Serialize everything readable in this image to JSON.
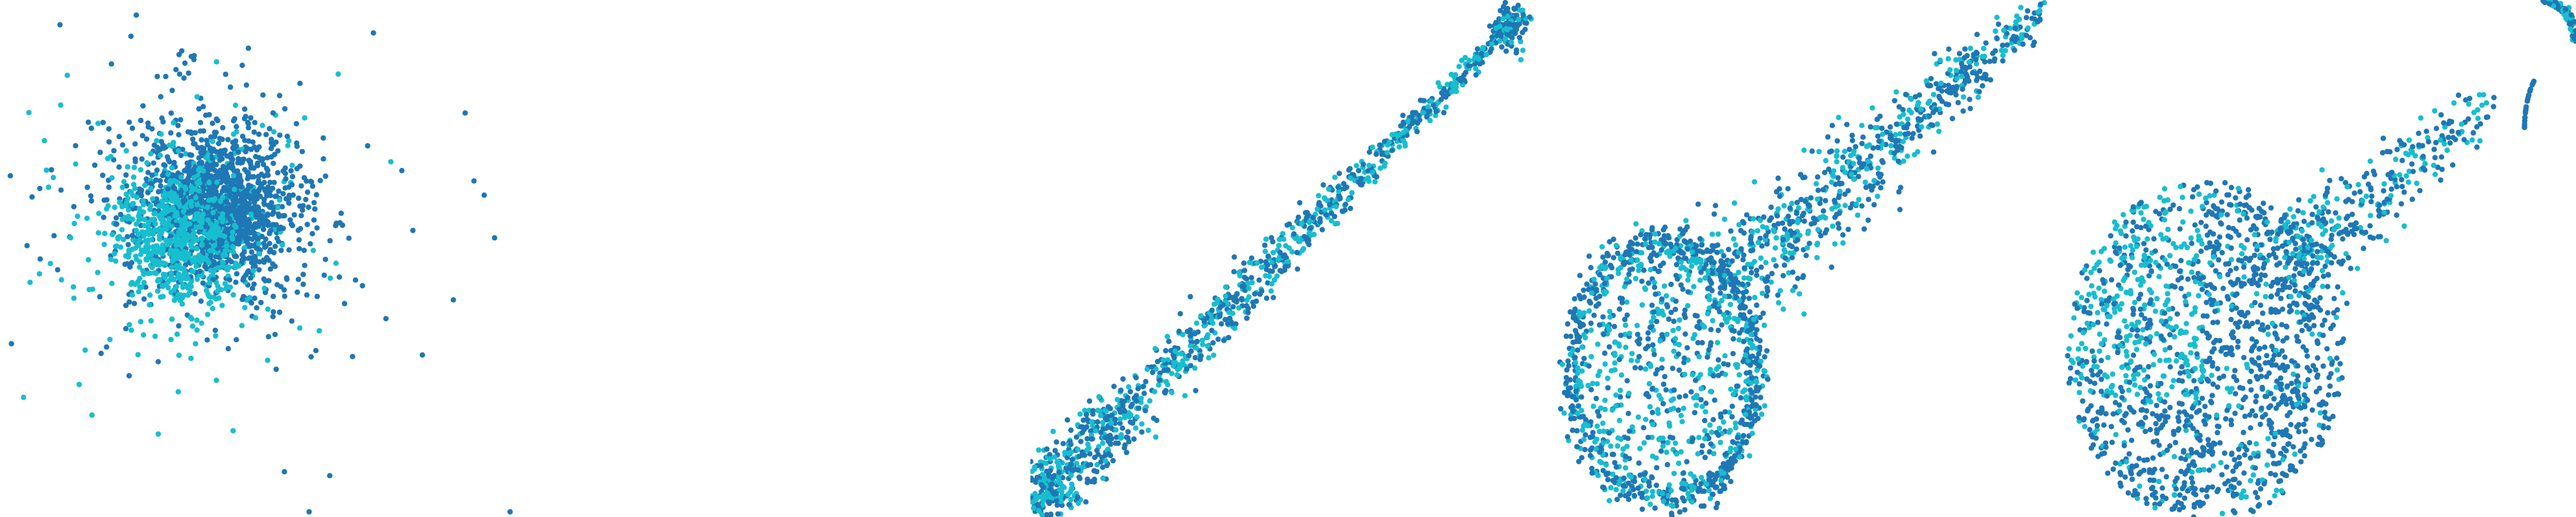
{
  "colors": {
    "series_a": "#1f77b4",
    "series_b": "#17becf",
    "background": "#ffffff"
  },
  "chart_data": [
    {
      "type": "scatter",
      "panel": 1,
      "shape": "isotropic blob with sparse outliers",
      "series": [
        {
          "color": "#1f77b4",
          "center": [
            0.4,
            0.4
          ],
          "spread": [
            0.18,
            0.16
          ],
          "points": 900
        },
        {
          "color": "#17becf",
          "center": [
            0.36,
            0.45
          ],
          "spread": [
            0.16,
            0.16
          ],
          "points": 500
        }
      ],
      "outliers": [
        [
          0.02,
          0.34
        ],
        [
          0.96,
          0.46
        ],
        [
          0.92,
          0.35
        ],
        [
          0.88,
          0.58
        ],
        [
          0.64,
          0.92
        ],
        [
          0.6,
          0.99
        ],
        [
          0.99,
          0.99
        ],
        [
          0.78,
          0.33
        ]
      ],
      "xlim": [
        0,
        1
      ],
      "ylim": [
        0,
        1
      ],
      "grid": false
    },
    {
      "type": "scatter",
      "panel": 2,
      "shape": "empty",
      "series": [],
      "xlim": [
        0,
        1
      ],
      "ylim": [
        0,
        1
      ],
      "grid": false
    },
    {
      "type": "scatter",
      "panel": 3,
      "shape": "narrow diagonal band with small cluster at top-right",
      "series": [
        {
          "color": "#1f77b4",
          "points": 700
        },
        {
          "color": "#17becf",
          "points": 450
        }
      ],
      "xlim": [
        0,
        1
      ],
      "ylim": [
        0,
        1
      ],
      "grid": false
    },
    {
      "type": "scatter",
      "panel": 4,
      "shape": "hollow oval with diagonal tail to top-right",
      "series": [
        {
          "color": "#1f77b4",
          "points": 1100
        },
        {
          "color": "#17becf",
          "points": 700
        }
      ],
      "xlim": [
        0,
        1
      ],
      "ylim": [
        0,
        1
      ],
      "grid": false
    },
    {
      "type": "scatter",
      "panel": 5,
      "shape": "filled oval with diagonal tail and arc at top-right",
      "series": [
        {
          "color": "#1f77b4",
          "points": 1400
        },
        {
          "color": "#17becf",
          "points": 650
        }
      ],
      "xlim": [
        0,
        1
      ],
      "ylim": [
        0,
        1
      ],
      "grid": false
    }
  ]
}
